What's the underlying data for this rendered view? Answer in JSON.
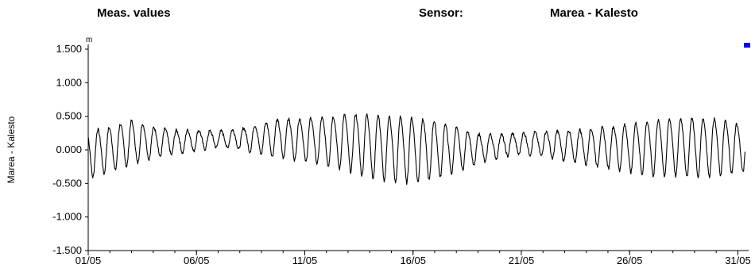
{
  "header": {
    "title": "Meas. values",
    "sensor_label": "Sensor:",
    "sensor_value": "Marea - Kalesto"
  },
  "colors": {
    "line": "#000000",
    "legend_marker": "#0000ff",
    "axis": "#000000"
  },
  "chart_data": {
    "type": "line",
    "ylabel": "Marea - Kalesto",
    "unit": "m",
    "ylim": [
      -1.5,
      1.5
    ],
    "yticks": [
      1.5,
      1.0,
      0.5,
      0.0,
      -0.5,
      -1.0,
      -1.5
    ],
    "ytick_labels": [
      "1.500",
      "1.000",
      "0.500",
      "0.000",
      "-0.500",
      "-1.000",
      "-1.500"
    ],
    "xlim": [
      "2000-05-01",
      "2000-05-31"
    ],
    "xtick_dates": [
      "2000-05-01",
      "2000-05-06",
      "2000-05-11",
      "2000-05-16",
      "2000-05-21",
      "2000-05-26",
      "2000-05-31"
    ],
    "xtick_labels": [
      "01/05",
      "06/05",
      "11/05",
      "16/05",
      "21/05",
      "26/05",
      "31/05"
    ],
    "grid": false,
    "legend": "top-right",
    "series": [
      {
        "x": [
          "2000-05-01",
          "2000-05-02",
          "2000-05-03",
          "2000-05-04",
          "2000-05-05",
          "2000-05-06",
          "2000-05-07",
          "2000-05-08",
          "2000-05-09",
          "2000-05-10",
          "2000-05-11",
          "2000-05-12",
          "2000-05-13",
          "2000-05-14",
          "2000-05-15",
          "2000-05-16",
          "2000-05-17",
          "2000-05-18",
          "2000-05-19",
          "2000-05-20",
          "2000-05-21",
          "2000-05-22",
          "2000-05-23",
          "2000-05-24",
          "2000-05-25",
          "2000-05-26",
          "2000-05-27",
          "2000-05-28",
          "2000-05-29",
          "2000-05-30",
          "2000-05-31"
        ],
        "high": [
          0.3,
          0.35,
          0.45,
          0.35,
          0.3,
          0.3,
          0.28,
          0.32,
          0.4,
          0.48,
          0.48,
          0.5,
          0.55,
          0.55,
          0.52,
          0.5,
          0.45,
          0.35,
          0.25,
          0.24,
          0.26,
          0.28,
          0.3,
          0.32,
          0.35,
          0.4,
          0.45,
          0.48,
          0.5,
          0.48,
          0.4
        ],
        "low": [
          -0.4,
          -0.3,
          -0.2,
          -0.1,
          -0.05,
          0.0,
          0.05,
          0.02,
          -0.05,
          -0.1,
          -0.15,
          -0.2,
          -0.28,
          -0.38,
          -0.45,
          -0.45,
          -0.4,
          -0.3,
          -0.2,
          -0.1,
          -0.05,
          -0.08,
          -0.15,
          -0.2,
          -0.25,
          -0.3,
          -0.35,
          -0.35,
          -0.38,
          -0.35,
          -0.3
        ]
      }
    ]
  }
}
